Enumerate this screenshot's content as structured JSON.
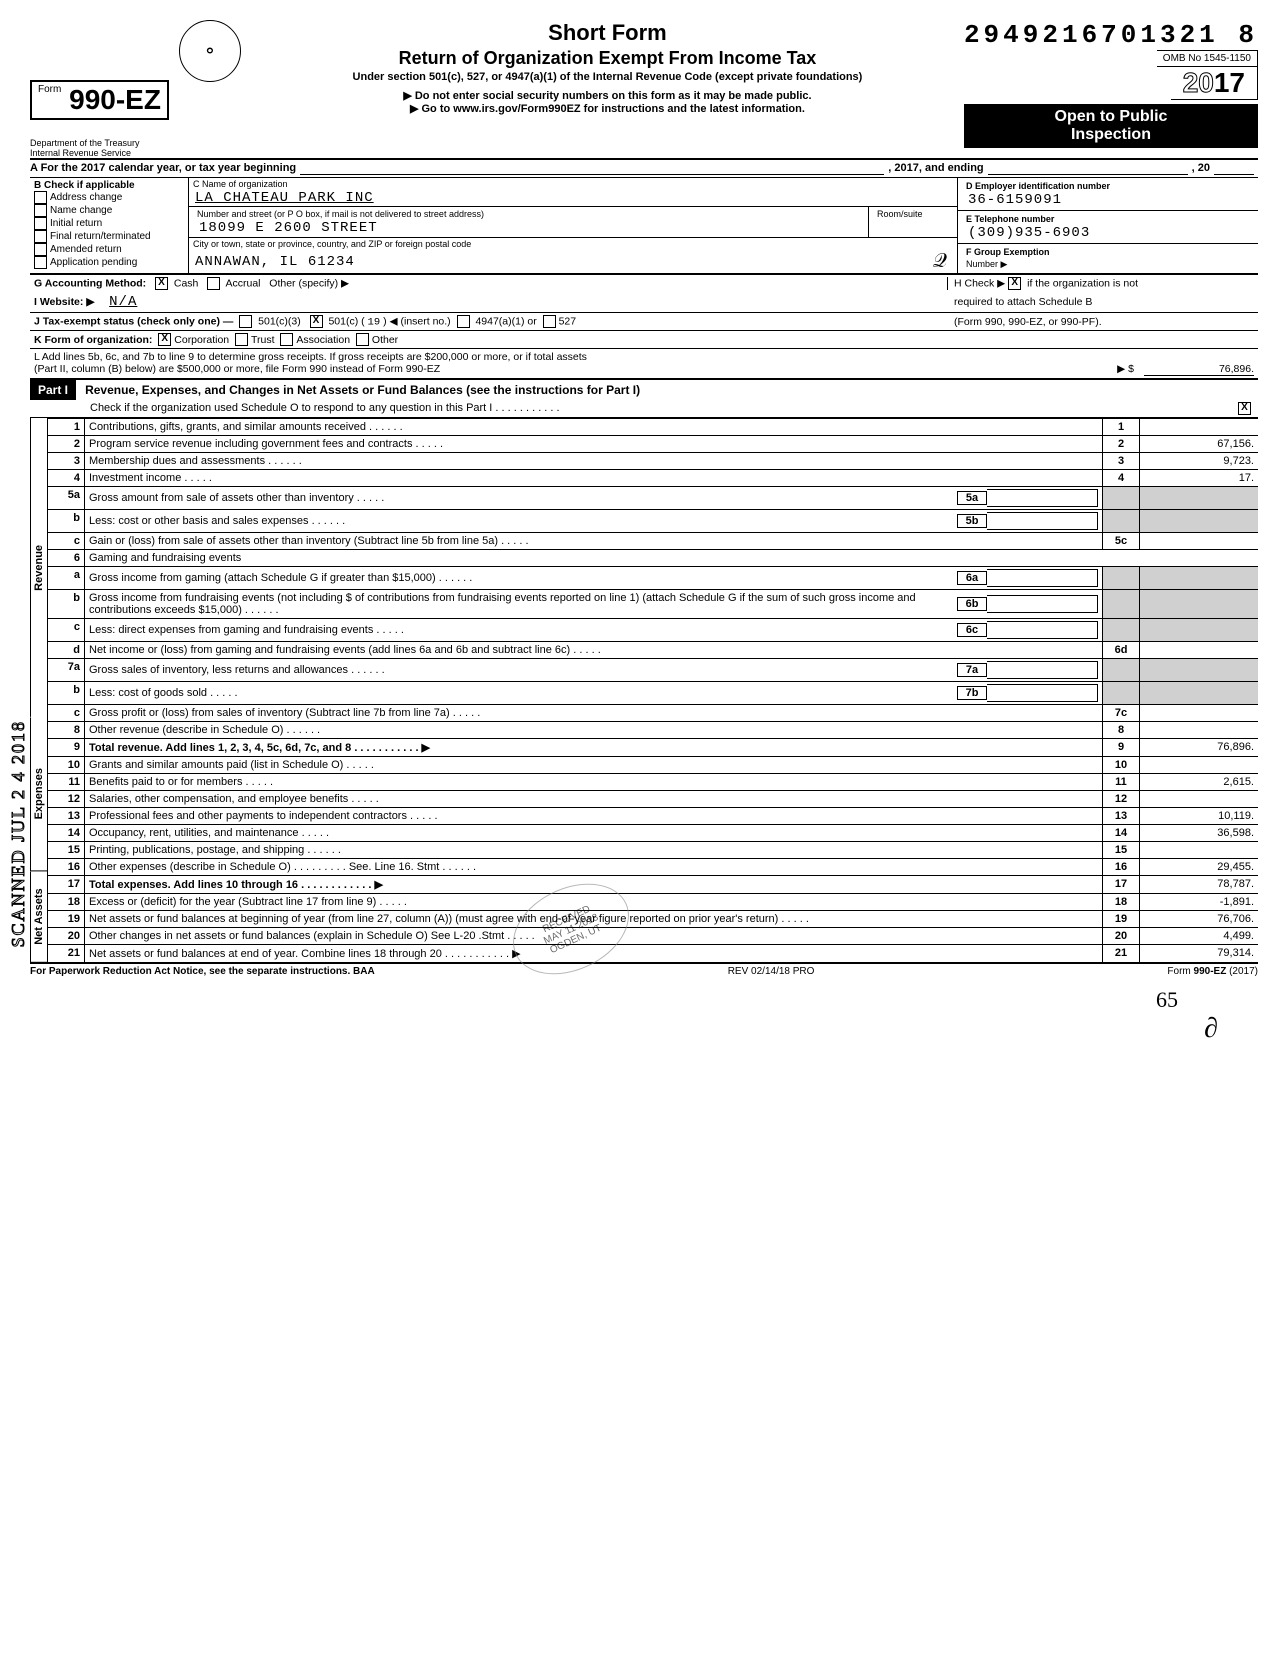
{
  "header": {
    "form_prefix": "Form",
    "form_number": "990-EZ",
    "dln": "2949216701321  8",
    "short_form": "Short Form",
    "title": "Return of Organization Exempt From Income Tax",
    "subtitle": "Under section 501(c), 527, or 4947(a)(1) of the Internal Revenue Code (except private foundations)",
    "warn1": "▶ Do not enter social security numbers on this form as it may be made public.",
    "warn2": "▶ Go to www.irs.gov/Form990EZ for instructions and the latest information.",
    "omb": "OMB No 1545-1150",
    "year": "2017",
    "open_public_1": "Open to Public",
    "open_public_2": "Inspection",
    "dept1": "Department of the Treasury",
    "dept2": "Internal Revenue Service"
  },
  "line_a": {
    "prefix": "A For the 2017 calendar year, or tax year beginning",
    "mid": ", 2017, and ending",
    "suffix": ", 20"
  },
  "section_b": {
    "header": "B Check if applicable",
    "items": [
      "Address change",
      "Name change",
      "Initial return",
      "Final return/terminated",
      "Amended return",
      "Application pending"
    ]
  },
  "section_c": {
    "name_label": "C Name of organization",
    "name": "LA CHATEAU PARK INC",
    "street_label": "Number and street (or P O  box, if mail is not delivered to street address)",
    "room_label": "Room/suite",
    "street": "18099 E 2600 STREET",
    "city_label": "City or town, state or province, country, and ZIP or foreign postal code",
    "city": "ANNAWAN, IL 61234"
  },
  "section_d": {
    "label": "D Employer identification number",
    "value": "36-6159091"
  },
  "section_e": {
    "label": "E Telephone number",
    "value": "(309)935-6903"
  },
  "section_f": {
    "label": "F Group Exemption",
    "label2": "Number ▶"
  },
  "line_g": {
    "label": "G Accounting Method:",
    "cash": "Cash",
    "accrual": "Accrual",
    "other": "Other (specify) ▶",
    "cash_checked": true
  },
  "line_h": {
    "text1": "H Check ▶",
    "text2": "if the organization is not",
    "text3": "required to attach Schedule B",
    "text4": "(Form 990, 990-EZ, or 990-PF).",
    "checked": true
  },
  "line_i": {
    "label": "I  Website: ▶",
    "value": "N/A"
  },
  "line_j": {
    "label": "J Tax-exempt status (check only one) —",
    "opt1": "501(c)(3)",
    "opt2": "501(c) (",
    "insert": "19",
    "opt2b": ") ◀ (insert no.)",
    "opt3": "4947(a)(1) or",
    "opt4": "527",
    "opt2_checked": true
  },
  "line_k": {
    "label": "K Form of organization:",
    "corp": "Corporation",
    "trust": "Trust",
    "assoc": "Association",
    "other": "Other",
    "corp_checked": true
  },
  "line_l": {
    "text1": "L Add lines 5b, 6c, and 7b to line 9 to determine gross receipts. If gross receipts are $200,000 or more, or if total assets",
    "text2": "(Part II, column (B) below) are $500,000 or more, file Form 990 instead of Form 990-EZ",
    "arrow": "▶  $",
    "value": "76,896."
  },
  "part1": {
    "badge": "Part I",
    "title": "Revenue, Expenses, and Changes in Net Assets or Fund Balances (see the instructions for Part I)",
    "check_line": "Check if the organization used Schedule O to respond to any question in this Part I .  .  .  .  .  .  .  .  .  .  .",
    "check_checked": true
  },
  "rows": [
    {
      "n": "1",
      "desc": "Contributions, gifts, grants, and similar amounts received .",
      "box": "1",
      "amt": ""
    },
    {
      "n": "2",
      "desc": "Program service revenue including government fees and contracts",
      "box": "2",
      "amt": "67,156."
    },
    {
      "n": "3",
      "desc": "Membership dues and assessments .",
      "box": "3",
      "amt": "9,723."
    },
    {
      "n": "4",
      "desc": "Investment income",
      "box": "4",
      "amt": "17."
    },
    {
      "n": "5a",
      "desc": "Gross amount from sale of assets other than inventory",
      "inset_box": "5a",
      "inset_amt": ""
    },
    {
      "n": "b",
      "desc": "Less: cost or other basis and sales expenses .",
      "inset_box": "5b",
      "inset_amt": ""
    },
    {
      "n": "c",
      "desc": "Gain or (loss) from sale of assets other than inventory (Subtract line 5b from line 5a)",
      "box": "5c",
      "amt": ""
    },
    {
      "n": "6",
      "desc": "Gaming and fundraising events"
    },
    {
      "n": "a",
      "desc": "Gross income from gaming (attach Schedule G if greater than $15,000) .",
      "inset_box": "6a",
      "inset_amt": ""
    },
    {
      "n": "b",
      "desc": "Gross income from fundraising events (not including  $                    of contributions from fundraising events reported on line 1) (attach Schedule G if the sum of such gross income and contributions exceeds $15,000) .",
      "inset_box": "6b",
      "inset_amt": ""
    },
    {
      "n": "c",
      "desc": "Less: direct expenses from gaming and fundraising events",
      "inset_box": "6c",
      "inset_amt": ""
    },
    {
      "n": "d",
      "desc": "Net income or (loss) from gaming and fundraising events (add lines 6a and 6b and subtract line 6c)",
      "box": "6d",
      "amt": ""
    },
    {
      "n": "7a",
      "desc": "Gross sales of inventory, less returns and allowances .",
      "inset_box": "7a",
      "inset_amt": ""
    },
    {
      "n": "b",
      "desc": "Less: cost of goods sold",
      "inset_box": "7b",
      "inset_amt": ""
    },
    {
      "n": "c",
      "desc": "Gross profit or (loss) from sales of inventory (Subtract line 7b from line 7a)",
      "box": "7c",
      "amt": ""
    },
    {
      "n": "8",
      "desc": "Other revenue (describe in Schedule O) .",
      "box": "8",
      "amt": ""
    },
    {
      "n": "9",
      "desc": "Total revenue. Add lines 1, 2, 3, 4, 5c, 6d, 7c, and 8",
      "box": "9",
      "amt": "76,896.",
      "bold": true,
      "arrow": true
    },
    {
      "n": "10",
      "desc": "Grants and similar amounts paid (list in Schedule O)",
      "box": "10",
      "amt": ""
    },
    {
      "n": "11",
      "desc": "Benefits paid to or for members",
      "box": "11",
      "amt": "2,615."
    },
    {
      "n": "12",
      "desc": "Salaries, other compensation, and employee benefits",
      "box": "12",
      "amt": ""
    },
    {
      "n": "13",
      "desc": "Professional fees and other payments to independent contractors",
      "box": "13",
      "amt": "10,119."
    },
    {
      "n": "14",
      "desc": "Occupancy, rent, utilities, and maintenance",
      "box": "14",
      "amt": "36,598."
    },
    {
      "n": "15",
      "desc": "Printing, publications, postage, and shipping .",
      "box": "15",
      "amt": ""
    },
    {
      "n": "16",
      "desc": "Other expenses (describe in Schedule O)  .  .  .  .  .  .  .  .  . See. Line 16. Stmt .",
      "box": "16",
      "amt": "29,455."
    },
    {
      "n": "17",
      "desc": "Total expenses. Add lines 10 through 16 .",
      "box": "17",
      "amt": "78,787.",
      "bold": true,
      "arrow": true
    },
    {
      "n": "18",
      "desc": "Excess or (deficit) for the year (Subtract line 17 from line 9)",
      "box": "18",
      "amt": "-1,891."
    },
    {
      "n": "19",
      "desc": "Net assets or fund balances at beginning of year (from line 27, column (A)) (must agree with end-of-year figure reported on prior year's return)",
      "box": "19",
      "amt": "76,706."
    },
    {
      "n": "20",
      "desc": "Other changes in net assets or fund balances (explain in Schedule O) See  L-20 .Stmt",
      "box": "20",
      "amt": "4,499."
    },
    {
      "n": "21",
      "desc": "Net assets or fund balances at end of year. Combine lines 18 through 20",
      "box": "21",
      "amt": "79,314.",
      "arrow": true
    }
  ],
  "side_labels": {
    "revenue": "Revenue",
    "expenses": "Expenses",
    "net_assets": "Net Assets",
    "scanned": "SCANNED JUL 2 4 2018"
  },
  "ogden_stamp": "RECEIVED\nMAY 11 2018\nOGDEN, UT",
  "footer": {
    "left": "For Paperwork Reduction Act Notice, see the separate instructions. BAA",
    "mid": "REV 02/14/18 PRO",
    "right": "Form 990-EZ (2017)"
  },
  "hand_note": "65",
  "initial": "Q",
  "colors": {
    "black": "#000000",
    "shade": "#d0d0d0"
  }
}
